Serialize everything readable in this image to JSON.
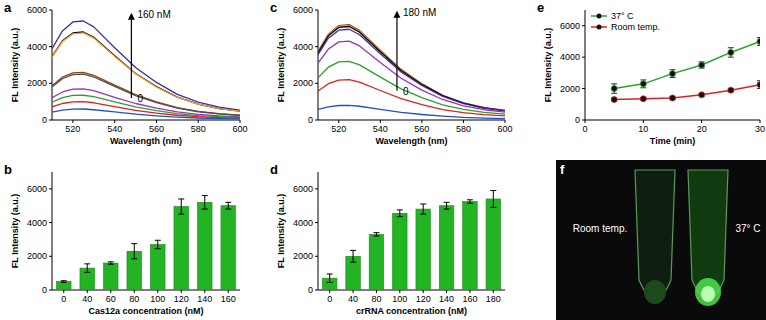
{
  "chart_data": [
    {
      "type": "line",
      "title": "a",
      "xlabel": "Wavelength (nm)",
      "ylabel": "FL Intensity (a.u.)",
      "x": [
        510,
        515,
        520,
        525,
        530,
        540,
        550,
        560,
        570,
        580,
        590,
        600
      ],
      "xlim": [
        510,
        600
      ],
      "xticks": [
        520,
        540,
        560,
        580,
        600
      ],
      "ylim": [
        0,
        6000
      ],
      "yticks": [
        0,
        2000,
        4000,
        6000
      ],
      "annotations": [
        {
          "text": "160 nM",
          "x": 548,
          "y": 5800
        },
        {
          "text": "0",
          "x": 548,
          "y": 1200
        }
      ],
      "series": [
        {
          "color": "#3b2ca8",
          "values": [
            3890,
            4860,
            5350,
            5400,
            5080,
            3940,
            2860,
            2050,
            1400,
            970,
            700,
            540
          ]
        },
        {
          "color": "#000000",
          "values": [
            3460,
            4320,
            4750,
            4800,
            4510,
            3500,
            2540,
            1820,
            1250,
            860,
            620,
            480
          ]
        },
        {
          "color": "#f0a030",
          "values": [
            3420,
            4280,
            4700,
            4750,
            4470,
            3470,
            2520,
            1800,
            1240,
            860,
            620,
            480
          ]
        },
        {
          "color": "#8b4513",
          "values": [
            1870,
            2340,
            2570,
            2600,
            2440,
            1900,
            1380,
            990,
            680,
            470,
            340,
            260
          ]
        },
        {
          "color": "#505050",
          "values": [
            1800,
            2250,
            2480,
            2500,
            2350,
            1830,
            1330,
            950,
            650,
            450,
            330,
            250
          ]
        },
        {
          "color": "#9b30c0",
          "values": [
            1220,
            1530,
            1680,
            1700,
            1600,
            1240,
            900,
            650,
            440,
            310,
            220,
            170
          ]
        },
        {
          "color": "#2ca02c",
          "values": [
            970,
            1220,
            1340,
            1350,
            1270,
            990,
            720,
            510,
            350,
            240,
            180,
            140
          ]
        },
        {
          "color": "#e02020",
          "values": [
            720,
            900,
            990,
            1000,
            940,
            730,
            530,
            380,
            260,
            180,
            130,
            100
          ]
        },
        {
          "color": "#1f4fd0",
          "values": [
            430,
            540,
            590,
            600,
            560,
            440,
            320,
            230,
            160,
            110,
            80,
            60
          ]
        }
      ]
    },
    {
      "type": "bar",
      "title": "b",
      "xlabel": "Cas12a concentration (nM)",
      "ylabel": "FL Intensity (a.u.)",
      "categories": [
        "0",
        "40",
        "60",
        "80",
        "100",
        "120",
        "140",
        "160"
      ],
      "values": [
        500,
        1300,
        1600,
        2300,
        2700,
        4950,
        5200,
        5000
      ],
      "errors": [
        50,
        250,
        70,
        450,
        250,
        450,
        400,
        200
      ],
      "color": "#22b422",
      "ylim": [
        0,
        7000
      ],
      "yticks": [
        0,
        2000,
        4000,
        6000
      ]
    },
    {
      "type": "line",
      "title": "c",
      "xlabel": "Wavelength (nm)",
      "ylabel": "FL Intensity (a.u.)",
      "x": [
        510,
        515,
        520,
        525,
        530,
        540,
        550,
        560,
        570,
        580,
        590,
        600
      ],
      "xlim": [
        510,
        600
      ],
      "xticks": [
        520,
        540,
        560,
        580,
        600
      ],
      "ylim": [
        0,
        6000
      ],
      "yticks": [
        0,
        2000,
        4000,
        6000
      ],
      "annotations": [
        {
          "text": "180 nM",
          "x": 548,
          "y": 5900
        },
        {
          "text": "0",
          "x": 548,
          "y": 1600
        }
      ],
      "series": [
        {
          "color": "#8b4513",
          "values": [
            3740,
            4680,
            5150,
            5200,
            4890,
            3800,
            2760,
            1980,
            1350,
            940,
            680,
            520
          ]
        },
        {
          "color": "#f0a030",
          "values": [
            3710,
            4640,
            5100,
            5150,
            4840,
            3760,
            2730,
            1960,
            1340,
            930,
            670,
            520
          ]
        },
        {
          "color": "#000000",
          "values": [
            3670,
            4590,
            5050,
            5100,
            4790,
            3720,
            2700,
            1940,
            1330,
            920,
            660,
            510
          ]
        },
        {
          "color": "#3b2ca8",
          "values": [
            3560,
            4460,
            4900,
            4950,
            4650,
            3610,
            2620,
            1880,
            1290,
            890,
            640,
            500
          ]
        },
        {
          "color": "#9b30c0",
          "values": [
            3100,
            3870,
            4260,
            4300,
            4040,
            3140,
            2280,
            1630,
            1120,
            770,
            560,
            430
          ]
        },
        {
          "color": "#2ca02c",
          "values": [
            2300,
            2880,
            3170,
            3200,
            3010,
            2340,
            1700,
            1220,
            830,
            580,
            420,
            320
          ]
        },
        {
          "color": "#e02020",
          "values": [
            1580,
            1980,
            2180,
            2200,
            2070,
            1610,
            1170,
            840,
            570,
            400,
            290,
            220
          ]
        },
        {
          "color": "#1f4fd0",
          "values": [
            580,
            720,
            790,
            800,
            750,
            580,
            420,
            300,
            210,
            140,
            100,
            80
          ]
        }
      ]
    },
    {
      "type": "bar",
      "title": "d",
      "xlabel": "crRNA concentration (nM)",
      "ylabel": "FL Intensity (a.u.)",
      "categories": [
        "0",
        "40",
        "80",
        "100",
        "120",
        "140",
        "160",
        "180"
      ],
      "values": [
        700,
        2000,
        3300,
        4550,
        4800,
        5000,
        5250,
        5400
      ],
      "errors": [
        250,
        350,
        100,
        200,
        300,
        200,
        100,
        500
      ],
      "color": "#22b422",
      "ylim": [
        0,
        7000
      ],
      "yticks": [
        0,
        2000,
        4000,
        6000
      ]
    },
    {
      "type": "line",
      "title": "e",
      "xlabel": "Time (min)",
      "ylabel": "FL Intensity (a.u.)",
      "x": [
        5,
        10,
        15,
        20,
        25,
        30
      ],
      "xlim": [
        0,
        30
      ],
      "xticks": [
        0,
        10,
        20,
        30
      ],
      "ylim": [
        0,
        7000
      ],
      "yticks": [
        0,
        2000,
        4000,
        6000
      ],
      "legend": "upper-left",
      "series": [
        {
          "name": "37° C",
          "color": "#2ca02c",
          "marker": "circle",
          "values": [
            2000,
            2300,
            2950,
            3500,
            4300,
            5000
          ],
          "errors": [
            300,
            250,
            250,
            200,
            300,
            250
          ]
        },
        {
          "name": "Room temp.",
          "color": "#e02020",
          "marker": "circle",
          "values": [
            1300,
            1350,
            1400,
            1600,
            1900,
            2250
          ],
          "errors": [
            100,
            80,
            80,
            80,
            100,
            250
          ]
        }
      ]
    }
  ],
  "photo": {
    "title": "f",
    "labels": [
      "Room temp.",
      "37° C"
    ]
  }
}
